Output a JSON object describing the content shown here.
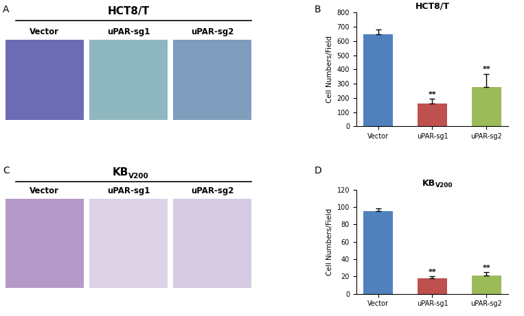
{
  "image_panels": [
    {
      "panel_label": "A",
      "title": "HCT8/T",
      "captions": [
        "Vector",
        "uPAR-sg1",
        "uPAR-sg2"
      ]
    },
    {
      "panel_label": "C",
      "title": "KB",
      "title_subscript": "V200",
      "captions": [
        "Vector",
        "uPAR-sg1",
        "uPAR-sg2"
      ]
    }
  ],
  "chart_data": [
    {
      "type": "bar",
      "panel_label": "B",
      "title": "HCT8/T",
      "categories": [
        "Vector",
        "uPAR-sg1",
        "uPAR-sg2"
      ],
      "values": [
        650,
        160,
        275
      ],
      "errors": [
        30,
        35,
        95
      ],
      "colors": [
        "#4f81bd",
        "#c0504d",
        "#9bbb59"
      ],
      "y_label": "Cell Numbers/Field",
      "ylim": [
        0,
        800
      ],
      "yticks": [
        0,
        100,
        200,
        300,
        400,
        500,
        600,
        700,
        800
      ],
      "annotations": [
        {
          "category": "uPAR-sg1",
          "text": "**"
        },
        {
          "category": "uPAR-sg2",
          "text": "**"
        }
      ]
    },
    {
      "type": "bar",
      "panel_label": "D",
      "title": "KB",
      "title_subscript": "V200",
      "categories": [
        "Vector",
        "uPAR-sg1",
        "uPAR-sg2"
      ],
      "values": [
        95,
        18,
        21
      ],
      "errors": [
        3,
        2,
        4
      ],
      "colors": [
        "#4f81bd",
        "#c0504d",
        "#9bbb59"
      ],
      "y_label": "Cell Numbers/Field",
      "ylim": [
        0,
        120
      ],
      "yticks": [
        0,
        20,
        40,
        60,
        80,
        100,
        120
      ],
      "annotations": [
        {
          "category": "uPAR-sg1",
          "text": "**"
        },
        {
          "category": "uPAR-sg2",
          "text": "**"
        }
      ]
    }
  ]
}
